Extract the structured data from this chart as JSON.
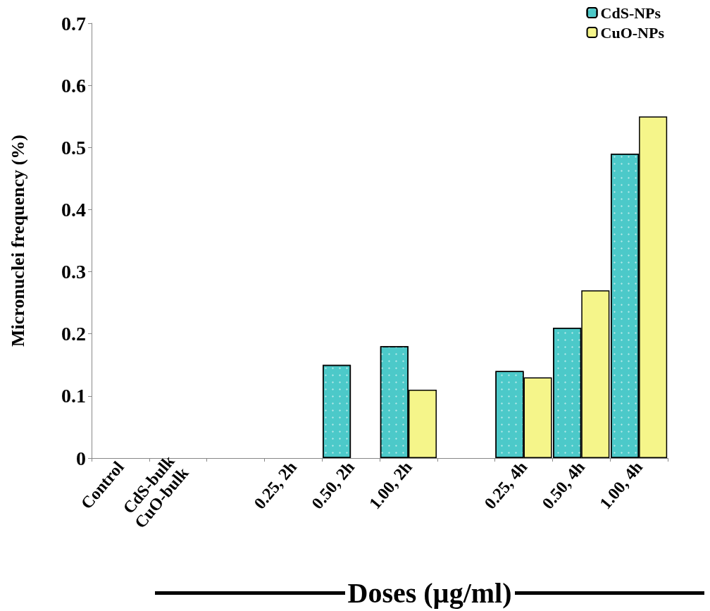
{
  "chart_data": {
    "type": "bar",
    "xlabel": "Doses (µg/ml)",
    "ylabel": "Micronuclei frequency (%)",
    "categories": [
      "Control",
      "CdS-bulk\nCuO-bulk",
      null,
      "0.25, 2h",
      "0.50, 2h",
      "1.00, 2h",
      null,
      "0.25, 4h",
      "0.50, 4h",
      "1.00, 4h"
    ],
    "series": [
      {
        "name": "CdS-NPs",
        "color": "#4cc9c9",
        "values": [
          0,
          0,
          null,
          0,
          0.15,
          0.18,
          null,
          0.14,
          0.21,
          0.49
        ]
      },
      {
        "name": "CuO-NPs",
        "color": "#f5f58a",
        "values": [
          0,
          0,
          null,
          0,
          null,
          0.11,
          null,
          0.13,
          0.27,
          0.55
        ]
      }
    ],
    "ylim": [
      0,
      0.7
    ],
    "yticks": [
      0,
      0.1,
      0.2,
      0.3,
      0.4,
      0.5,
      0.6,
      0.7
    ],
    "grid": false,
    "legend": "top right"
  }
}
